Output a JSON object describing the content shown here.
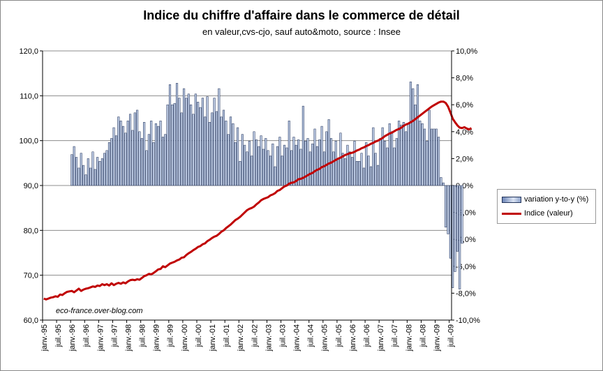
{
  "chart_data": {
    "type": "bar+line",
    "title": "Indice du chiffre d'affaire dans le commerce de détail",
    "subtitle": "en valeur,cvs-cjo, sauf auto&moto, source : Insee",
    "watermark": "eco-france.over-blog.com",
    "y_left": {
      "min": 60,
      "max": 120,
      "ticks": [
        "60,0",
        "70,0",
        "80,0",
        "90,0",
        "100,0",
        "110,0",
        "120,0"
      ]
    },
    "y_right": {
      "min": -10,
      "max": 10,
      "ticks": [
        "-10,0%",
        "-8,0%",
        "-6,0%",
        "-4,0%",
        "-2,0%",
        "0,0%",
        "2,0%",
        "4,0%",
        "6,0%",
        "8,0%",
        "10,0%"
      ]
    },
    "x_ticks": [
      "janv.-95",
      "juil.-95",
      "janv.-96",
      "juil.-96",
      "janv.-97",
      "juil.-97",
      "janv.-98",
      "juil.-98",
      "janv.-99",
      "juil.-99",
      "janv.-00",
      "juil.-00",
      "janv.-01",
      "juil.-01",
      "janv.-02",
      "juil.-02",
      "janv.-03",
      "juil.-03",
      "janv.-04",
      "juil.-04",
      "janv.-05",
      "juil.-05",
      "janv.-06",
      "juil.-06",
      "janv.-07",
      "juil.-07",
      "janv.-08",
      "juil.-08",
      "janv.-09",
      "juil.-09"
    ],
    "series": [
      {
        "name": "variation y-to-y (%)",
        "type": "bar",
        "axis": "right",
        "start": "1996-01",
        "values": [
          2.3,
          2.9,
          2.1,
          1.3,
          2.4,
          1.5,
          0.8,
          2.0,
          1.3,
          2.5,
          1.2,
          2.1,
          1.8,
          2.0,
          2.4,
          2.6,
          3.2,
          3.5,
          4.3,
          3.7,
          5.1,
          4.8,
          4.4,
          3.9,
          4.8,
          5.3,
          4.1,
          5.4,
          5.6,
          4.0,
          3.5,
          4.7,
          2.6,
          3.8,
          4.8,
          3.2,
          4.6,
          4.4,
          4.8,
          3.6,
          3.8,
          6.0,
          7.5,
          6.0,
          6.1,
          7.6,
          6.5,
          5.4,
          7.2,
          6.5,
          6.8,
          6.0,
          5.3,
          6.8,
          6.2,
          5.8,
          6.5,
          5.1,
          6.6,
          4.7,
          5.4,
          6.5,
          5.5,
          7.2,
          5.1,
          5.6,
          4.8,
          3.8,
          5.1,
          4.6,
          3.2,
          4.3,
          1.8,
          3.8,
          3.0,
          2.5,
          3.3,
          2.2,
          4.0,
          3.4,
          2.9,
          3.7,
          2.7,
          3.5,
          2.6,
          2.2,
          3.1,
          1.4,
          2.9,
          3.6,
          2.2,
          3.0,
          2.8,
          4.8,
          2.6,
          3.6,
          3.0,
          3.4,
          2.7,
          5.9,
          3.3,
          3.5,
          2.5,
          3.1,
          4.2,
          2.9,
          3.4,
          4.4,
          2.5,
          4.0,
          4.9,
          3.5,
          2.5,
          3.3,
          2.0,
          3.9,
          2.4,
          2.0,
          3.0,
          2.5,
          2.1,
          3.3,
          1.8,
          1.8,
          2.4,
          1.3,
          3.2,
          2.2,
          1.4,
          4.3,
          2.4,
          1.5,
          3.5,
          4.3,
          3.3,
          2.8,
          4.6,
          4.0,
          2.8,
          3.5,
          4.8,
          4.5,
          4.7,
          4.0,
          4.6,
          7.7,
          7.2,
          6.0,
          7.5,
          4.8,
          4.6,
          4.2,
          3.3,
          5.6,
          4.2,
          4.2,
          4.2,
          3.6,
          0.6,
          0.2,
          -3.1,
          -3.6,
          -5.4,
          -7.6,
          -6.4,
          -4.9,
          -7.7,
          -4.3
        ]
      },
      {
        "name": "Indice (valeur)",
        "type": "line",
        "axis": "left",
        "start": "1995-01",
        "values": [
          64.8,
          64.6,
          64.8,
          65.0,
          65.1,
          65.3,
          65.2,
          65.7,
          65.6,
          66.0,
          66.3,
          66.4,
          66.5,
          66.2,
          66.6,
          67.0,
          66.5,
          66.8,
          67.0,
          67.1,
          67.3,
          67.5,
          67.4,
          67.7,
          67.6,
          68.0,
          67.8,
          68.0,
          67.7,
          68.2,
          67.8,
          68.1,
          68.3,
          68.1,
          68.4,
          68.2,
          68.6,
          68.9,
          69.0,
          68.9,
          69.1,
          69.0,
          69.4,
          69.8,
          70.0,
          70.3,
          70.2,
          70.5,
          70.9,
          71.3,
          71.4,
          72.0,
          71.8,
          72.2,
          72.6,
          72.8,
          73.0,
          73.3,
          73.5,
          73.9,
          74.0,
          74.5,
          74.9,
          75.2,
          75.6,
          75.9,
          76.3,
          76.5,
          76.9,
          77.1,
          77.6,
          77.9,
          78.3,
          78.6,
          78.8,
          79.2,
          79.7,
          80.0,
          80.5,
          80.9,
          81.3,
          81.8,
          82.3,
          82.6,
          83.0,
          83.5,
          84.0,
          84.5,
          84.8,
          85.0,
          85.3,
          85.8,
          86.2,
          86.7,
          87.0,
          87.2,
          87.4,
          87.8,
          88.0,
          88.3,
          88.8,
          89.0,
          89.4,
          89.8,
          90.0,
          90.4,
          90.6,
          90.7,
          91.0,
          91.4,
          91.5,
          91.7,
          92.0,
          92.3,
          92.6,
          92.8,
          93.2,
          93.5,
          93.7,
          94.1,
          94.3,
          94.6,
          94.9,
          95.1,
          95.4,
          95.7,
          96.0,
          96.2,
          96.5,
          96.8,
          97.0,
          97.2,
          97.3,
          97.5,
          97.8,
          98.0,
          98.3,
          98.5,
          98.8,
          99.0,
          99.3,
          99.5,
          99.8,
          100.0,
          100.3,
          100.6,
          101.0,
          101.3,
          101.6,
          101.8,
          102.1,
          102.4,
          102.6,
          102.9,
          103.3,
          103.6,
          103.8,
          104.1,
          104.4,
          104.8,
          105.2,
          105.6,
          106.0,
          106.4,
          106.8,
          107.2,
          107.6,
          107.9,
          108.2,
          108.5,
          108.7,
          108.7,
          108.4,
          107.6,
          106.3,
          104.9,
          104.1,
          103.4,
          102.9,
          102.8,
          103.0,
          102.7,
          102.5,
          102.8
        ]
      }
    ]
  }
}
